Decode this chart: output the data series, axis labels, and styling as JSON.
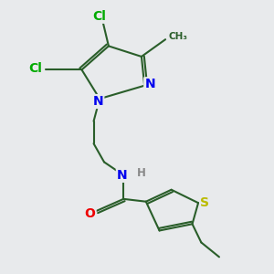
{
  "background_color": "#e8eaec",
  "bond_color": "#2a5e2a",
  "bond_width": 1.5,
  "atom_colors": {
    "N": "#0000ee",
    "O": "#ee0000",
    "S": "#bbbb00",
    "Cl": "#00aa00",
    "C": "#2a5e2a",
    "H": "#888888"
  },
  "font_size_atom": 10,
  "font_size_small": 8.5
}
